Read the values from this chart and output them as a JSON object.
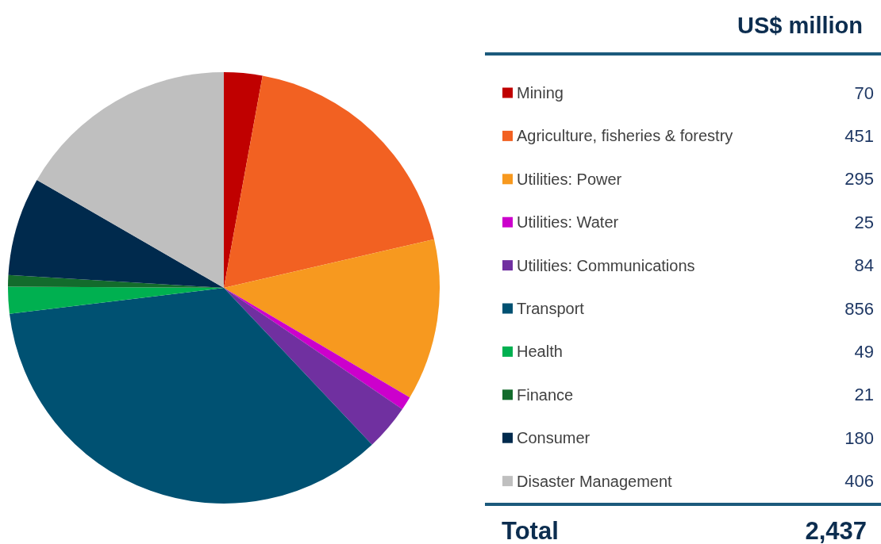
{
  "chart_data": {
    "type": "pie",
    "title": "US$ million",
    "categories": [
      "Mining",
      "Agriculture, fisheries & forestry",
      "Utilities: Power",
      "Utilities: Water",
      "Utilities: Communications",
      "Transport",
      "Health",
      "Finance",
      "Consumer",
      "Disaster Management"
    ],
    "values": [
      70,
      451,
      295,
      25,
      84,
      856,
      49,
      21,
      180,
      406
    ],
    "colors": [
      "#c00000",
      "#f26122",
      "#f7991f",
      "#cc00cc",
      "#7030a0",
      "#005172",
      "#00b050",
      "#136b2c",
      "#002a4d",
      "#bfbfbf"
    ],
    "data_labels": true,
    "legend": "right",
    "annotations": [
      "Total"
    ],
    "totals": [
      "2,437"
    ]
  }
}
